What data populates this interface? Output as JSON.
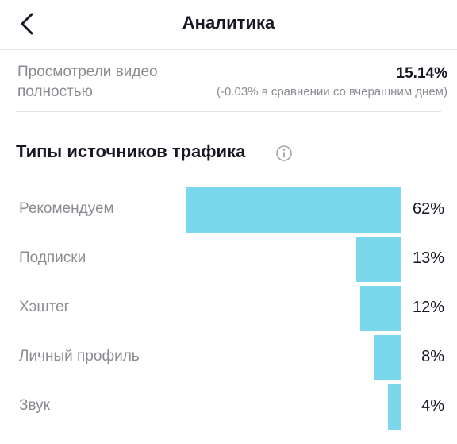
{
  "header": {
    "title": "Аналитика",
    "back_icon": "chevron-left-icon"
  },
  "metric": {
    "label": "Просмотрели видео полностью",
    "value": "15.14%",
    "comparison": "(-0.03% в сравнении со вчерашним днем)"
  },
  "traffic": {
    "title": "Типы источников трафика",
    "info_icon": "info-icon"
  },
  "chart_data": {
    "type": "bar",
    "orientation": "horizontal",
    "categories": [
      "Рекомендуем",
      "Подписки",
      "Хэштег",
      "Личный профиль",
      "Звук"
    ],
    "values": [
      62,
      13,
      12,
      8,
      4
    ],
    "value_labels": [
      "62%",
      "13%",
      "12%",
      "8%",
      "4%"
    ],
    "color": "#7ad7ec",
    "xlim": [
      0,
      62
    ]
  }
}
